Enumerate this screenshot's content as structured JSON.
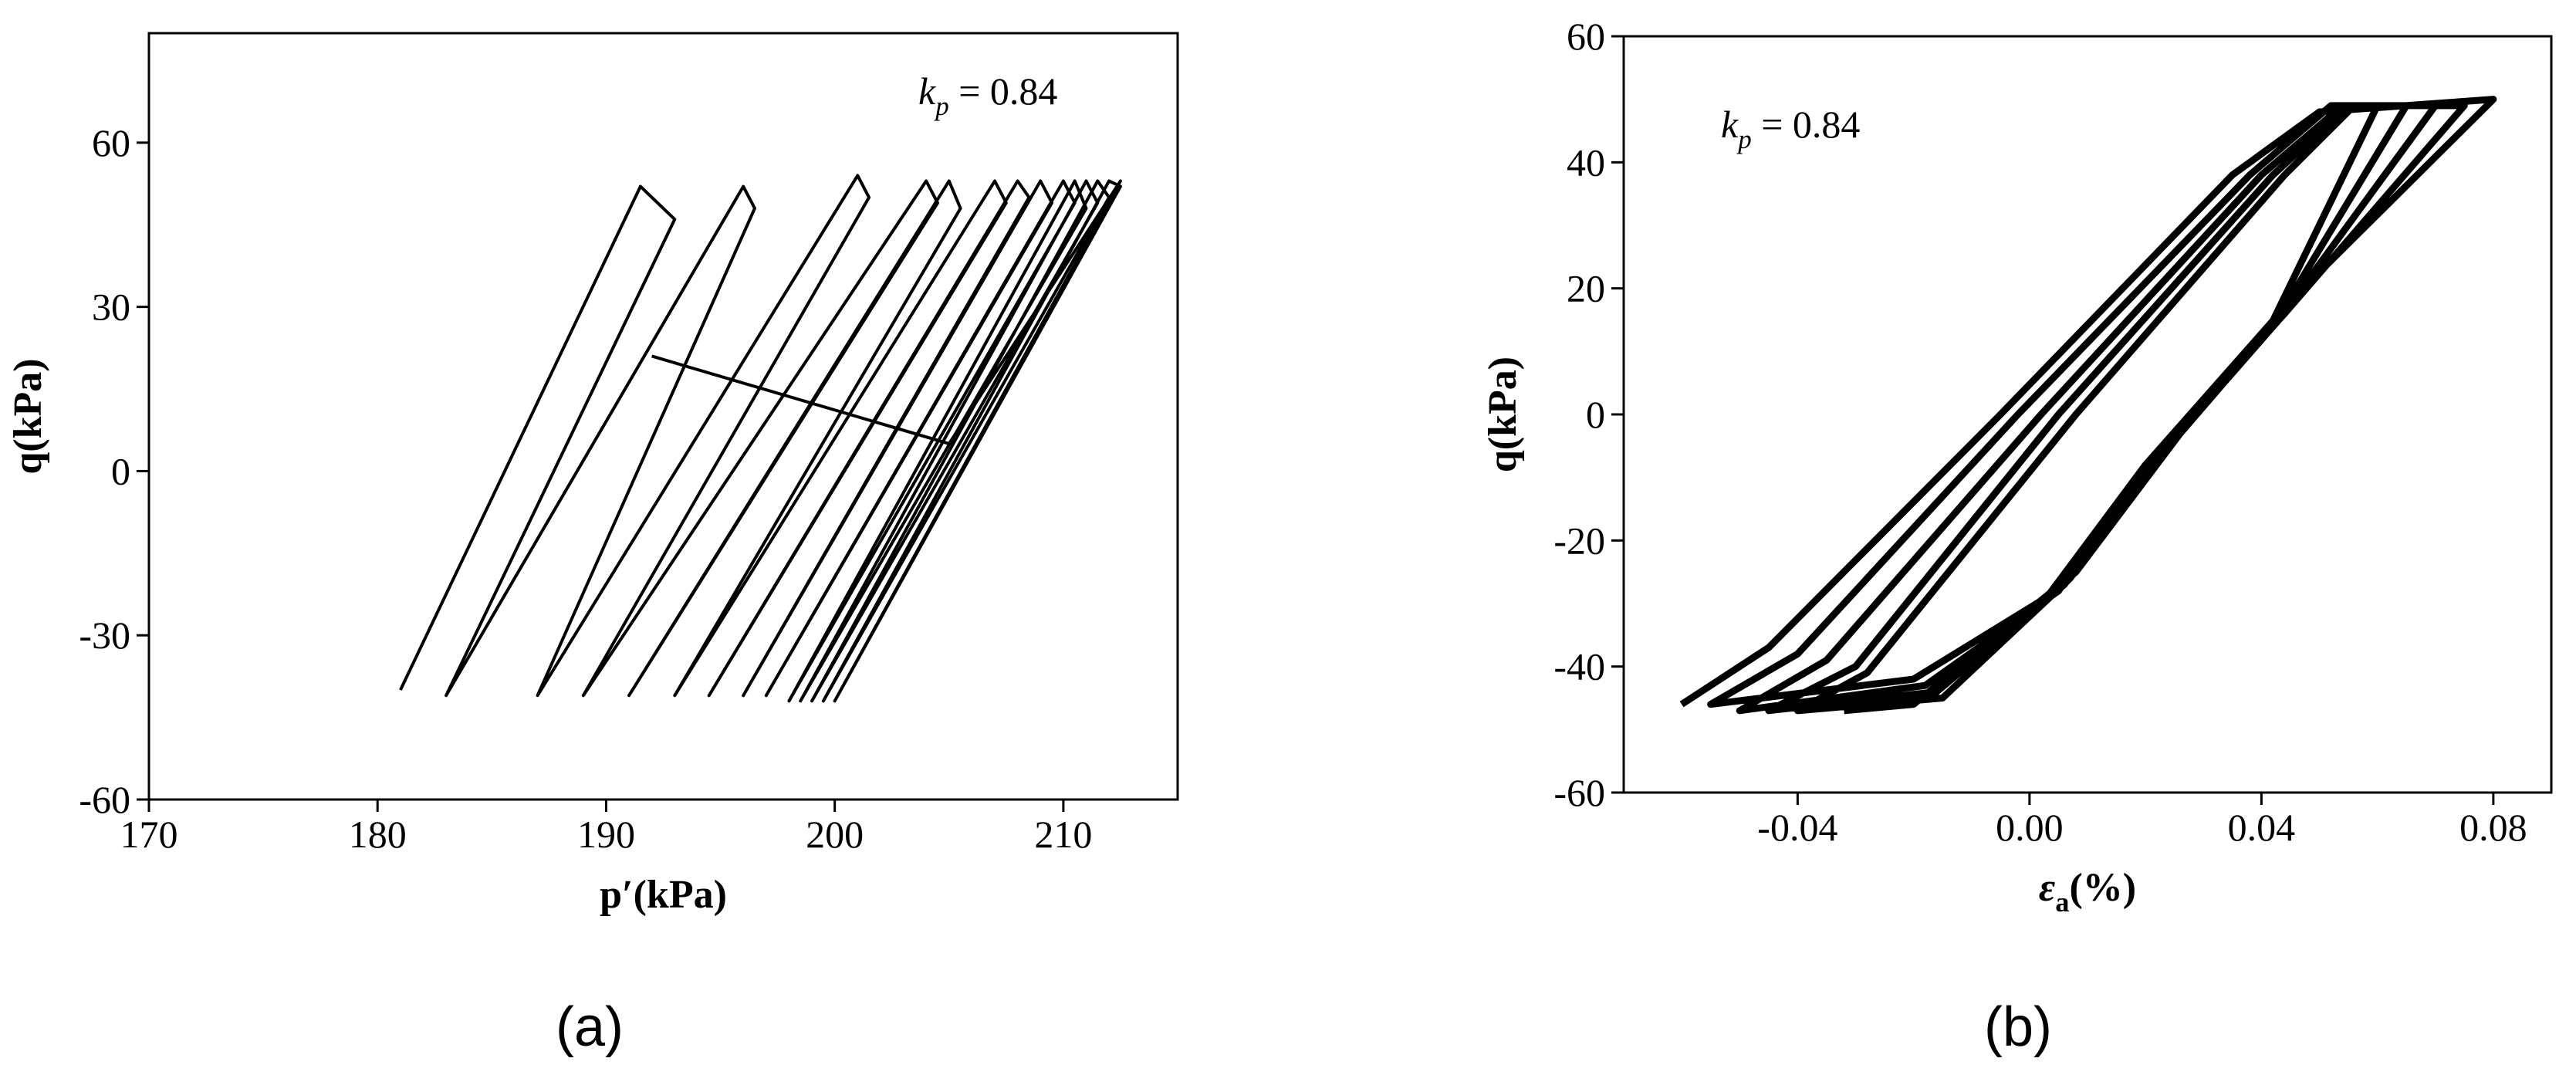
{
  "chart_data": [
    {
      "type": "line",
      "panel_label": "(a)",
      "annotation": {
        "symbol": "k",
        "subscript": "p",
        "text": " = 0.84"
      },
      "x_label": "p′(kPa)",
      "y_label": "q(kPa)",
      "xlim": [
        170,
        215
      ],
      "xticks": [
        170,
        180,
        190,
        200,
        210
      ],
      "ylim": [
        -60,
        80
      ],
      "yticks": [
        -60,
        -30,
        0,
        30,
        60
      ],
      "color": "#000000",
      "x": [
        181,
        191.5,
        193,
        183,
        196,
        196.5,
        187,
        201,
        201.5,
        189,
        204,
        204.5,
        191,
        205,
        205.5,
        193,
        207,
        207.5,
        194.5,
        208,
        208.5,
        196,
        209,
        209.5,
        197,
        210,
        210.5,
        198,
        210.5,
        211,
        198.5,
        211,
        211.5,
        199,
        211.5,
        212,
        199.5,
        212,
        212.5,
        200,
        212.5,
        205,
        192
      ],
      "values": [
        -40,
        52,
        46,
        -41,
        52,
        48,
        -41,
        54,
        50,
        -41,
        53,
        49,
        -41,
        53,
        48,
        -41,
        53,
        49,
        -41,
        53,
        50,
        -41,
        53,
        49,
        -41,
        53,
        49,
        -42,
        53,
        48,
        -42,
        53,
        49,
        -42,
        53,
        50,
        -42,
        53,
        52,
        -42,
        53,
        5,
        21
      ]
    },
    {
      "type": "line",
      "panel_label": "(b)",
      "annotation": {
        "symbol": "k",
        "subscript": "p",
        "text": " = 0.84"
      },
      "x_label": {
        "symbol": "ε",
        "subscript": "a",
        "text": "(%)"
      },
      "y_label": "q(kPa)",
      "xlim": [
        -0.07,
        0.09
      ],
      "xticks": [
        -0.04,
        {
          "value": 0,
          "label": "0.00"
        },
        0.04,
        0.08
      ],
      "ylim": [
        -60,
        60
      ],
      "yticks": [
        -60,
        -40,
        -20,
        0,
        20,
        40,
        60
      ],
      "color": "#000000",
      "x": [
        -0.06,
        -0.045,
        -0.005,
        0.035,
        0.05,
        0.08,
        0.045,
        0.02,
        0.003,
        -0.02,
        -0.055,
        -0.04,
        -0.002,
        0.038,
        0.052,
        0.075,
        0.044,
        0.022,
        0.005,
        -0.018,
        -0.05,
        -0.035,
        0.002,
        0.04,
        0.054,
        0.07,
        0.043,
        0.024,
        0.006,
        -0.016,
        -0.045,
        -0.03,
        0.005,
        0.042,
        0.055,
        0.065,
        0.042,
        0.025,
        0.007,
        -0.015,
        -0.04,
        -0.028,
        0.008,
        0.044,
        0.056,
        0.06,
        0.041,
        0.026,
        0.008,
        -0.02,
        -0.032
      ],
      "values": [
        -46,
        -37,
        0,
        38,
        48,
        50,
        18,
        -8,
        -29,
        -42,
        -46,
        -38,
        0,
        38,
        49,
        49,
        16,
        -6,
        -28,
        -43,
        -47,
        -39,
        0,
        38,
        49,
        49,
        15,
        -5,
        -27,
        -44,
        -47,
        -40,
        0,
        38,
        49,
        49,
        14,
        -4,
        -26,
        -45,
        -47,
        -41,
        0,
        38,
        49,
        49,
        13,
        -3,
        -25,
        -46,
        -47
      ]
    }
  ]
}
